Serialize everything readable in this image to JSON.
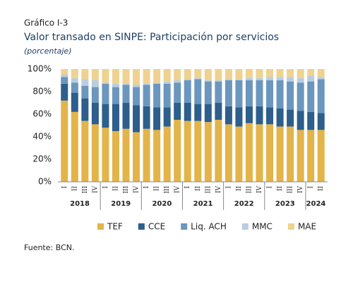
{
  "chart_data": {
    "type": "stacked-bar",
    "kicker": "Gráfico I-3",
    "title": "Valor transado en SINPE: Participación por servicios",
    "subtitle": "(porcentaje)",
    "source": "Fuente: BCN.",
    "categories": [
      "I",
      "II",
      "III",
      "IV",
      "I",
      "II",
      "III",
      "IV",
      "I",
      "II",
      "III",
      "IV",
      "I",
      "II",
      "III",
      "IV",
      "I",
      "II",
      "III",
      "IV",
      "I",
      "II",
      "III",
      "IV",
      "I",
      "II"
    ],
    "groups": [
      "2018",
      "2019",
      "2020",
      "2021",
      "2022",
      "2023",
      "2024"
    ],
    "series": [
      {
        "name": "TEF",
        "color": "#e3b449",
        "values": [
          72,
          62,
          54,
          51,
          48,
          45,
          47,
          44,
          47,
          46,
          49,
          55,
          54,
          54,
          53,
          55,
          51,
          49,
          52,
          51,
          51,
          49,
          49,
          46,
          46,
          46
        ]
      },
      {
        "name": "CCE",
        "color": "#2d5e8c",
        "values": [
          15,
          17,
          20,
          19,
          21,
          24,
          23,
          24,
          20,
          20,
          17,
          15,
          16,
          15,
          16,
          15,
          16,
          17,
          15,
          16,
          15,
          16,
          15,
          17,
          16,
          15
        ]
      },
      {
        "name": "Liq. ACH",
        "color": "#6b96be",
        "values": [
          6,
          9,
          11,
          14,
          18,
          15,
          16,
          16,
          19,
          21,
          21,
          18,
          20,
          22,
          20,
          19,
          23,
          24,
          23,
          23,
          24,
          25,
          25,
          25,
          27,
          30
        ]
      },
      {
        "name": "MMC",
        "color": "#b9cde0",
        "values": [
          2,
          4,
          6,
          6,
          1,
          3,
          1,
          2,
          1,
          1,
          2,
          2,
          1,
          1,
          1,
          1,
          1,
          1,
          2,
          2,
          3,
          3,
          4,
          4,
          5,
          2
        ]
      },
      {
        "name": "MAE",
        "color": "#efd290",
        "values": [
          5,
          8,
          9,
          10,
          12,
          13,
          13,
          14,
          13,
          12,
          11,
          10,
          9,
          8,
          10,
          10,
          9,
          9,
          8,
          8,
          7,
          7,
          7,
          8,
          6,
          7
        ]
      }
    ],
    "ylim": [
      0,
      100
    ],
    "yticks": [
      {
        "value": 0,
        "label": "0%"
      },
      {
        "value": 20,
        "label": "20%"
      },
      {
        "value": 40,
        "label": "40%"
      },
      {
        "value": 60,
        "label": "60%"
      },
      {
        "value": 80,
        "label": "80%"
      },
      {
        "value": 100,
        "label": "100%"
      }
    ],
    "grid": false
  }
}
